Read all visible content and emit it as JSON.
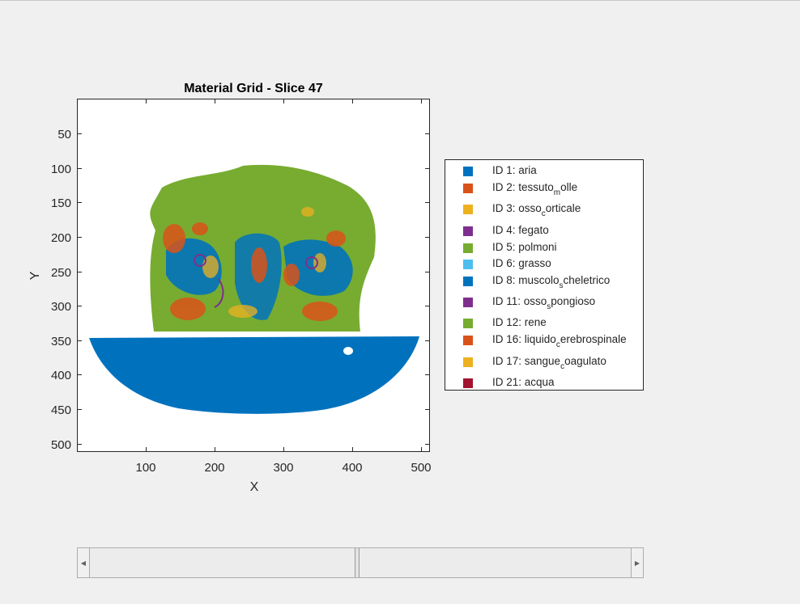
{
  "figure": {
    "title": "Material Grid - Slice 47",
    "xlabel": "X",
    "ylabel": "Y",
    "xticks": [
      "100",
      "200",
      "300",
      "400",
      "500"
    ],
    "yticks": [
      "50",
      "100",
      "150",
      "200",
      "250",
      "300",
      "350",
      "400",
      "450",
      "500"
    ]
  },
  "legend": {
    "items": [
      {
        "label": "ID 1: aria",
        "color": "#0072BD"
      },
      {
        "label": "ID 2: tessuto",
        "sub": "m",
        "rest": "olle",
        "color": "#D95319"
      },
      {
        "label": "ID 3: osso",
        "sub": "c",
        "rest": "orticale",
        "color": "#EDB120"
      },
      {
        "label": "ID 4: fegato",
        "color": "#7E2F8E"
      },
      {
        "label": "ID 5: polmoni",
        "color": "#77AC30"
      },
      {
        "label": "ID 6: grasso",
        "color": "#4DBEEE"
      },
      {
        "label": "ID 8: muscolo",
        "sub": "s",
        "rest": "cheletrico",
        "color": "#0072BD"
      },
      {
        "label": "ID 11: osso",
        "sub": "s",
        "rest": "pongioso",
        "color": "#7E2F8E"
      },
      {
        "label": "ID 12: rene",
        "color": "#77AC30"
      },
      {
        "label": "ID 16: liquido",
        "sub": "c",
        "rest": "erebrospinale",
        "color": "#D95319"
      },
      {
        "label": "ID 17: sangue",
        "sub": "c",
        "rest": "oagulato",
        "color": "#EDB120"
      },
      {
        "label": "ID 21: acqua",
        "color": "#A2142F"
      }
    ]
  },
  "slider": {
    "value_fraction": 0.49
  }
}
